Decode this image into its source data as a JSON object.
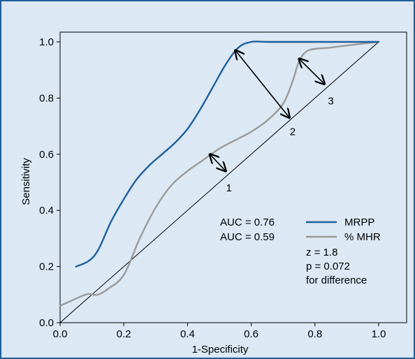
{
  "chart_data": {
    "type": "line",
    "xlabel": "1-Specificity",
    "ylabel": "Sensitivity",
    "xlim": [
      0,
      1
    ],
    "ylim": [
      0,
      1
    ],
    "x_ticks": [
      "0.0",
      "0.2",
      "0.4",
      "0.6",
      "0.8",
      "1.0"
    ],
    "y_ticks": [
      "0.0",
      "0.2",
      "0.4",
      "0.6",
      "0.8",
      "1.0"
    ],
    "grid": false,
    "legend_position": "inside, lower-right",
    "series": [
      {
        "name": "MRPP",
        "color": "#1f5f9e",
        "points": [
          [
            0.05,
            0.2
          ],
          [
            0.09,
            0.22
          ],
          [
            0.12,
            0.26
          ],
          [
            0.16,
            0.36
          ],
          [
            0.2,
            0.44
          ],
          [
            0.24,
            0.51
          ],
          [
            0.28,
            0.56
          ],
          [
            0.32,
            0.6
          ],
          [
            0.36,
            0.64
          ],
          [
            0.4,
            0.69
          ],
          [
            0.44,
            0.76
          ],
          [
            0.48,
            0.84
          ],
          [
            0.52,
            0.92
          ],
          [
            0.56,
            0.98
          ],
          [
            0.6,
            1.0
          ],
          [
            0.65,
            1.0
          ],
          [
            0.72,
            1.0
          ],
          [
            0.8,
            1.0
          ],
          [
            0.9,
            1.0
          ],
          [
            1.0,
            1.0
          ]
        ]
      },
      {
        "name": "% MHR",
        "color": "#9a9a9a",
        "points": [
          [
            0.0,
            0.06
          ],
          [
            0.08,
            0.1
          ],
          [
            0.1,
            0.1
          ],
          [
            0.12,
            0.1
          ],
          [
            0.15,
            0.12
          ],
          [
            0.2,
            0.17
          ],
          [
            0.25,
            0.3
          ],
          [
            0.3,
            0.41
          ],
          [
            0.35,
            0.49
          ],
          [
            0.4,
            0.54
          ],
          [
            0.45,
            0.58
          ],
          [
            0.5,
            0.62
          ],
          [
            0.55,
            0.65
          ],
          [
            0.6,
            0.68
          ],
          [
            0.65,
            0.72
          ],
          [
            0.7,
            0.78
          ],
          [
            0.73,
            0.86
          ],
          [
            0.75,
            0.93
          ],
          [
            0.78,
            0.97
          ],
          [
            0.85,
            0.98
          ],
          [
            0.92,
            0.99
          ],
          [
            1.0,
            1.0
          ]
        ]
      },
      {
        "name": "",
        "color": "#000000",
        "points": [
          [
            0,
            0
          ],
          [
            1,
            1
          ]
        ]
      }
    ],
    "legend": [
      {
        "auc": "AUC = 0.76",
        "label": "MRPP",
        "color": "#1f5f9e"
      },
      {
        "auc": "AUC = 0.59",
        "label": "% MHR",
        "color": "#9a9a9a"
      }
    ],
    "stats_lines": [
      "z = 1.8",
      "p = 0.072",
      "for difference"
    ],
    "annotations": [
      {
        "label": "1",
        "arrow_from": [
          0.47,
          0.6
        ],
        "arrow_to": [
          0.52,
          0.54
        ],
        "label_pos": [
          0.53,
          0.48
        ]
      },
      {
        "label": "2",
        "arrow_from": [
          0.55,
          0.97
        ],
        "arrow_to": [
          0.72,
          0.73
        ],
        "label_pos": [
          0.73,
          0.68
        ]
      },
      {
        "label": "3",
        "arrow_from": [
          0.75,
          0.94
        ],
        "arrow_to": [
          0.83,
          0.85
        ],
        "label_pos": [
          0.85,
          0.79
        ]
      }
    ]
  }
}
